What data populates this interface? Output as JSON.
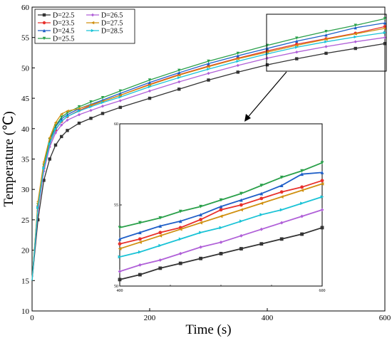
{
  "chart_data": [
    {
      "type": "line",
      "title": "",
      "xlabel": "Time (s)",
      "ylabel": "Temperature (℃)",
      "xlim": [
        0,
        600
      ],
      "ylim": [
        10,
        60
      ],
      "xticks": [
        "0",
        "200",
        "400",
        "600"
      ],
      "yticks": [
        "10",
        "15",
        "20",
        "25",
        "30",
        "35",
        "40",
        "45",
        "50",
        "55",
        "60"
      ],
      "legend": "top-left",
      "legend_entries": [
        "D=22.5",
        "D=23.5",
        "D=24.5",
        "D=25.5",
        "D=26.5",
        "D=27.5",
        "D=28.5"
      ],
      "x": [
        0,
        10,
        20,
        30,
        40,
        50,
        60,
        80,
        100,
        120,
        150,
        200,
        250,
        300,
        350,
        400,
        450,
        500,
        550,
        600
      ],
      "series": [
        {
          "name": "D=22.5",
          "color": "#333333",
          "marker": "square",
          "values": [
            15,
            25,
            31.5,
            35,
            37.3,
            38.7,
            39.7,
            40.9,
            41.7,
            42.5,
            43.5,
            45,
            46.5,
            48,
            49.3,
            50.5,
            51.5,
            52.4,
            53.2,
            54
          ]
        },
        {
          "name": "D=23.5",
          "color": "#e8312c",
          "marker": "circle",
          "values": [
            15,
            27,
            33.5,
            37.5,
            39.8,
            41.2,
            42,
            43,
            43.8,
            44.5,
            45.5,
            47.3,
            48.9,
            50.3,
            51.6,
            52.8,
            53.9,
            54.8,
            55.7,
            56.8
          ]
        },
        {
          "name": "D=24.5",
          "color": "#1f5fc8",
          "marker": "triangle-up",
          "values": [
            15,
            27.5,
            34,
            38,
            40.3,
            41.6,
            42.3,
            43.3,
            44,
            44.7,
            45.8,
            47.6,
            49.2,
            50.7,
            52,
            53.2,
            54.4,
            55.4,
            56.6,
            57.4
          ]
        },
        {
          "name": "D=25.5",
          "color": "#2aa04a",
          "marker": "triangle-down",
          "values": [
            15,
            27.5,
            34,
            38.2,
            40.5,
            41.9,
            42.6,
            43.6,
            44.4,
            45.1,
            46.2,
            48,
            49.6,
            51.1,
            52.4,
            53.7,
            54.9,
            56,
            57,
            58.1
          ]
        },
        {
          "name": "D=26.5",
          "color": "#b060d8",
          "marker": "diamond",
          "values": [
            15,
            26.5,
            33,
            37,
            39.3,
            40.6,
            41.4,
            42.3,
            43,
            43.7,
            44.6,
            46.2,
            47.7,
            49.1,
            50.4,
            51.6,
            52.6,
            53.5,
            54.3,
            55
          ]
        },
        {
          "name": "D=27.5",
          "color": "#d09010",
          "marker": "triangle-left",
          "values": [
            15,
            28,
            34.5,
            38.5,
            41,
            42.4,
            42.9,
            43.3,
            43.9,
            44.5,
            45.5,
            47.2,
            48.8,
            50.2,
            51.5,
            52.6,
            53.7,
            54.7,
            55.6,
            56.5
          ]
        },
        {
          "name": "D=28.5",
          "color": "#1ac3d6",
          "marker": "triangle-right",
          "values": [
            15,
            27,
            33.5,
            37.5,
            39.9,
            41.2,
            42,
            42.9,
            43.6,
            44.3,
            45.2,
            46.9,
            48.4,
            49.8,
            51.1,
            52.3,
            53.4,
            54.3,
            55.1,
            55.8
          ]
        }
      ]
    },
    {
      "type": "line",
      "title": "",
      "xlim": [
        400,
        600
      ],
      "ylim": [
        50,
        60
      ],
      "xticks": [
        "400",
        "600"
      ],
      "yticks": [
        "50",
        "55",
        "60"
      ],
      "x": [
        400,
        420,
        440,
        460,
        480,
        500,
        520,
        540,
        560,
        580,
        600
      ],
      "series": [
        {
          "name": "D=22.5",
          "color": "#333333",
          "marker": "square",
          "values": [
            50.4,
            50.7,
            51.1,
            51.4,
            51.7,
            52.0,
            52.3,
            52.6,
            52.9,
            53.2,
            53.6
          ]
        },
        {
          "name": "D=23.5",
          "color": "#e8312c",
          "marker": "circle",
          "values": [
            52.6,
            52.9,
            53.3,
            53.6,
            54.1,
            54.7,
            55.0,
            55.4,
            55.8,
            56.1,
            56.5
          ]
        },
        {
          "name": "D=24.5",
          "color": "#1f5fc8",
          "marker": "triangle-up",
          "values": [
            52.9,
            53.3,
            53.7,
            54.0,
            54.4,
            54.9,
            55.3,
            55.7,
            56.2,
            56.9,
            57.0
          ]
        },
        {
          "name": "D=25.5",
          "color": "#2aa04a",
          "marker": "triangle-down",
          "values": [
            53.6,
            53.9,
            54.2,
            54.6,
            54.9,
            55.3,
            55.7,
            56.2,
            56.7,
            57.1,
            57.6
          ]
        },
        {
          "name": "D=26.5",
          "color": "#b060d8",
          "marker": "diamond",
          "values": [
            50.9,
            51.3,
            51.6,
            52.0,
            52.4,
            52.7,
            53.1,
            53.5,
            53.9,
            54.3,
            54.7
          ]
        },
        {
          "name": "D=27.5",
          "color": "#d09010",
          "marker": "triangle-left",
          "values": [
            52.3,
            52.7,
            53.1,
            53.5,
            53.9,
            54.3,
            54.7,
            55.1,
            55.5,
            55.9,
            56.3
          ]
        },
        {
          "name": "D=28.5",
          "color": "#1ac3d6",
          "marker": "triangle-right",
          "values": [
            51.8,
            52.1,
            52.5,
            52.9,
            53.3,
            53.6,
            54.0,
            54.4,
            54.7,
            55.1,
            55.5
          ]
        }
      ]
    }
  ]
}
